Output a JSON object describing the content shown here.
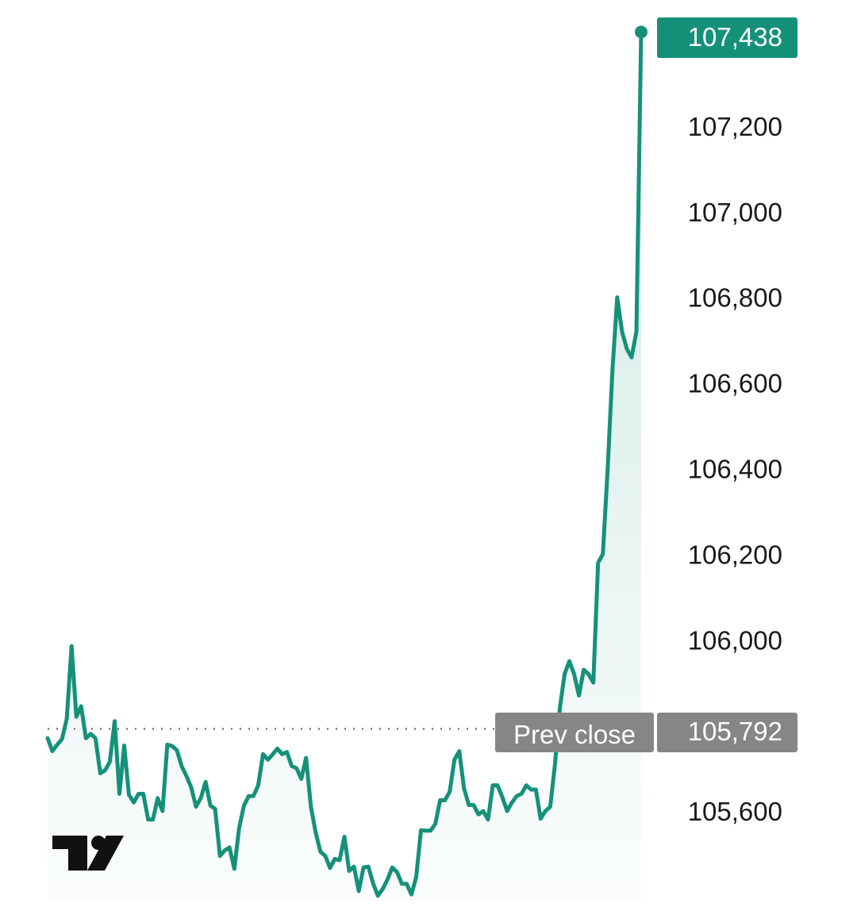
{
  "chart_data": {
    "type": "area",
    "title": "",
    "xlabel": "",
    "ylabel": "",
    "ylim": [
      105440,
      107500
    ],
    "y_ticks": [
      105600,
      106000,
      106200,
      106400,
      106600,
      106800,
      107000,
      107200
    ],
    "y_tick_labels": [
      "105,600",
      "106,000",
      "106,200",
      "106,400",
      "106,600",
      "106,800",
      "107,000",
      "107,200"
    ],
    "last_price": 107438,
    "last_price_label": "107,438",
    "prev_close": 105792,
    "prev_close_value_label": "105,792",
    "prev_close_label": "Prev close",
    "grid": false,
    "series": [
      {
        "values": [
          105770,
          105740,
          105755,
          105768,
          105815,
          105985,
          105820,
          105845,
          105770,
          105780,
          105770,
          105688,
          105695,
          105715,
          105810,
          105640,
          105753,
          105638,
          105620,
          105640,
          105640,
          105580,
          105580,
          105630,
          105600,
          105755,
          105752,
          105742,
          105705,
          105682,
          105655,
          105610,
          105630,
          105668,
          105613,
          105605,
          105495,
          105508,
          105515,
          105465,
          105560,
          105612,
          105635,
          105635,
          105660,
          105733,
          105720,
          105732,
          105746,
          105733,
          105738,
          105705,
          105700,
          105675,
          105724,
          105610,
          105550,
          105505,
          105495,
          105467,
          105488,
          105485,
          105540,
          105460,
          105470,
          105413,
          105468,
          105470,
          105431,
          105402,
          105418,
          105440,
          105468,
          105457,
          105430,
          105430,
          105405,
          105446,
          105555,
          105554,
          105554,
          105570,
          105625,
          105625,
          105645,
          105720,
          105740,
          105653,
          105614,
          105614,
          105592,
          105600,
          105580,
          105660,
          105660,
          105632,
          105600,
          105620,
          105635,
          105640,
          105660,
          105650,
          105650,
          105582,
          105600,
          105610,
          105710,
          105840,
          105920,
          105950,
          105920,
          105870,
          105930,
          105920,
          105900,
          106180,
          106200,
          106400,
          106630,
          106800,
          106720,
          106680,
          106660,
          106720,
          107420
        ]
      }
    ]
  },
  "line_color": "#15917a",
  "tag_color": "#15917a",
  "prev_close_tag_color": "#868686",
  "logo": {
    "name": "TradingView"
  }
}
